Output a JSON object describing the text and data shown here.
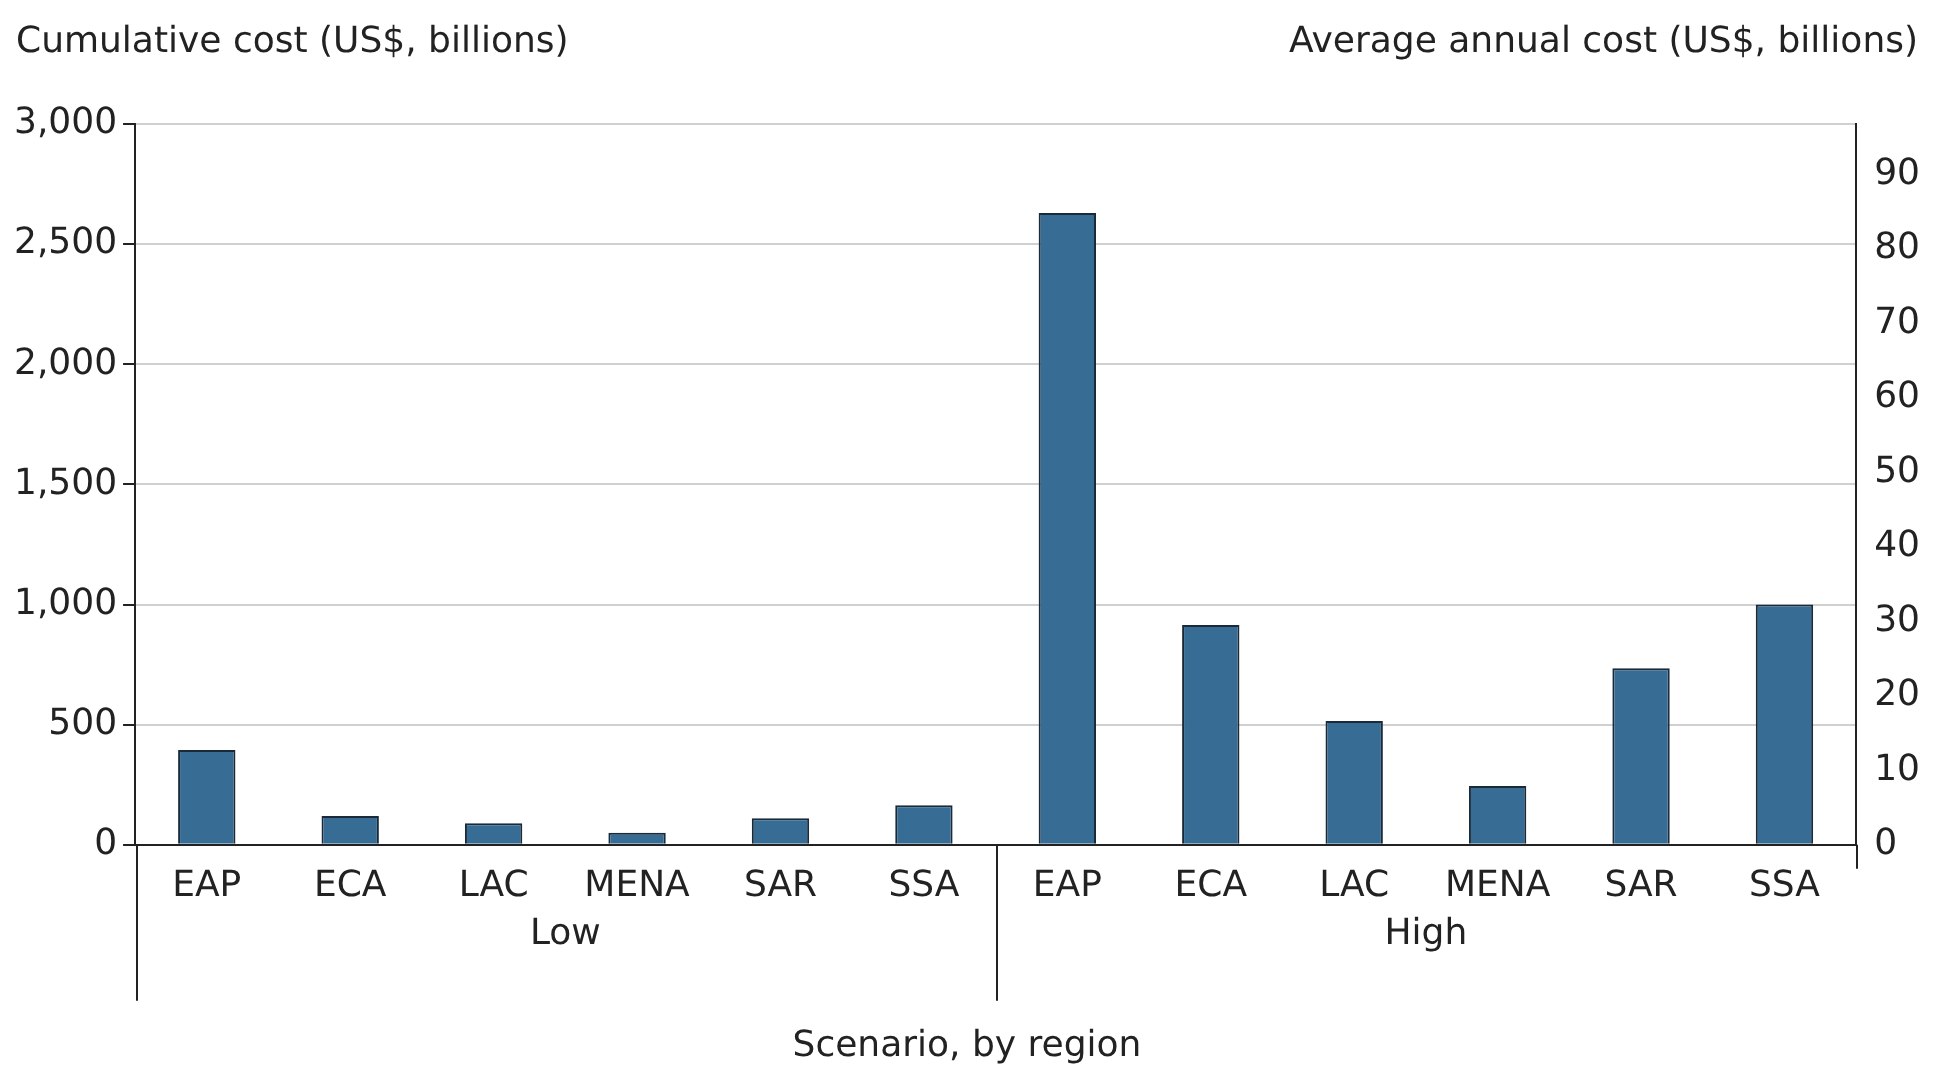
{
  "chart_data": {
    "type": "bar",
    "ylabel": "Cumulative cost (US$, billions)",
    "y2label": "Average annual cost (US$, billions)",
    "xlabel": "Scenario, by region",
    "categories": [
      "EAP",
      "ECA",
      "LAC",
      "MENA",
      "SAR",
      "SSA",
      "EAP",
      "ECA",
      "LAC",
      "MENA",
      "SAR",
      "SSA"
    ],
    "series": [
      {
        "color": "#376c94",
        "values": [
          395,
          120,
          90,
          50,
          110,
          165,
          2630,
          915,
          515,
          245,
          735,
          1000
        ]
      }
    ],
    "ylim": [
      0,
      3000
    ],
    "yticks": [
      0,
      {
        "value": 500,
        "label": "500"
      },
      {
        "value": 1000,
        "label": "1,000"
      },
      {
        "value": 1500,
        "label": "1,500"
      },
      {
        "value": 2000,
        "label": "2,000"
      },
      {
        "value": 2500,
        "label": "2,500"
      },
      {
        "value": 3000,
        "label": "3,000"
      }
    ],
    "y2lim": [
      0,
      96.8
    ],
    "y2ticks": [
      0,
      10,
      20,
      30,
      40,
      50,
      60,
      70,
      80,
      90
    ],
    "grid": "y",
    "legend": false,
    "annotations": [
      "Low",
      "High"
    ]
  }
}
